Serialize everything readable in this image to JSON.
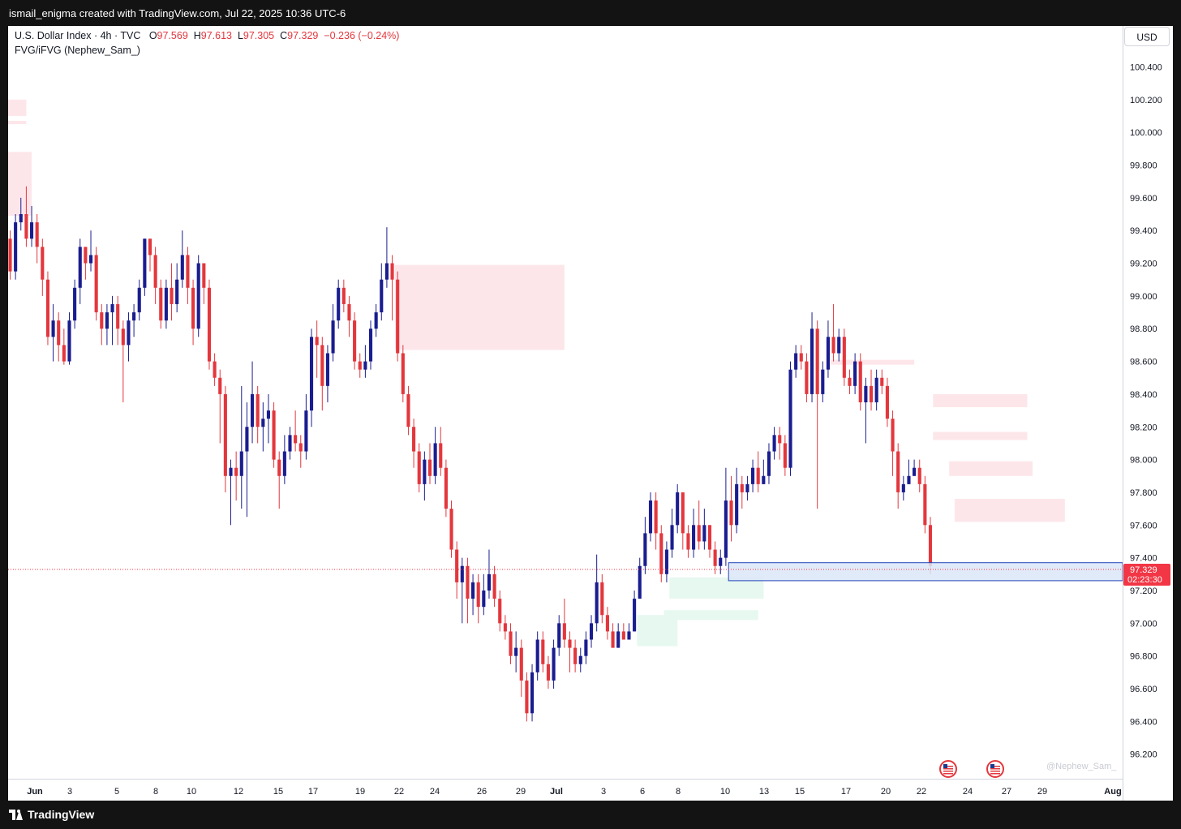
{
  "header": {
    "title": "ismail_enigma created with TradingView.com, Jul 22, 2025 10:36 UTC-6"
  },
  "footer": {
    "brand": "TradingView"
  },
  "legend": {
    "symbol": "U.S. Dollar Index · 4h · TVC",
    "o_label": "O",
    "o": "97.569",
    "h_label": "H",
    "h": "97.613",
    "l_label": "L",
    "l": "97.305",
    "c_label": "C",
    "c": "97.329",
    "change": "−0.236 (−0.24%)",
    "indicator": "FVG/iFVG (Nephew_Sam_)"
  },
  "currency": "USD",
  "watermark": "@Nephew_Sam_",
  "colors": {
    "up": "#1a1d8f",
    "down": "#e3373d",
    "bear_fvg": "#fde6ea",
    "bull_fvg": "#e6f8ef",
    "zone_fill": "#dbe6f8",
    "zone_border": "#2244bb",
    "price_tag": "#f23645"
  },
  "chart_data": {
    "type": "candlestick",
    "timeframe": "4h",
    "ylim": [
      96.05,
      100.65
    ],
    "y_ticks": [
      100.4,
      100.2,
      100.0,
      99.8,
      99.6,
      99.4,
      99.2,
      99.0,
      98.8,
      98.6,
      98.4,
      98.2,
      98.0,
      97.8,
      97.6,
      97.4,
      97.2,
      97.0,
      96.8,
      96.6,
      96.4,
      96.2
    ],
    "x_ticks": [
      "Jun",
      "3",
      "5",
      "8",
      "10",
      "12",
      "15",
      "17",
      "19",
      "22",
      "24",
      "26",
      "29",
      "Jul",
      "3",
      "6",
      "8",
      "10",
      "13",
      "15",
      "17",
      "20",
      "22",
      "24",
      "27",
      "29",
      "Aug"
    ],
    "last_price": "97.329",
    "countdown": "02:23:30",
    "candles": [
      [
        99.35,
        99.15,
        99.4,
        99.1
      ],
      [
        99.15,
        99.45,
        99.5,
        99.1
      ],
      [
        99.45,
        99.5,
        99.6,
        99.4
      ],
      [
        99.5,
        99.35,
        99.67,
        99.3
      ],
      [
        99.35,
        99.45,
        99.55,
        99.3
      ],
      [
        99.45,
        99.3,
        99.5,
        99.2
      ],
      [
        99.3,
        99.1,
        99.35,
        99.0
      ],
      [
        99.1,
        98.75,
        99.15,
        98.7
      ],
      [
        98.75,
        98.85,
        98.95,
        98.6
      ],
      [
        98.85,
        98.7,
        98.9,
        98.6
      ],
      [
        98.7,
        98.6,
        98.8,
        98.58
      ],
      [
        98.6,
        98.85,
        98.9,
        98.58
      ],
      [
        98.85,
        99.05,
        99.1,
        98.8
      ],
      [
        99.05,
        99.3,
        99.35,
        98.95
      ],
      [
        99.3,
        99.2,
        99.3,
        99.1
      ],
      [
        99.2,
        99.25,
        99.4,
        99.15
      ],
      [
        99.25,
        98.9,
        99.3,
        98.85
      ],
      [
        98.9,
        98.8,
        98.95,
        98.7
      ],
      [
        98.8,
        98.9,
        98.95,
        98.7
      ],
      [
        98.9,
        98.95,
        99.0,
        98.7
      ],
      [
        98.95,
        98.8,
        99.0,
        98.7
      ],
      [
        98.8,
        98.7,
        98.85,
        98.35
      ],
      [
        98.7,
        98.85,
        98.9,
        98.6
      ],
      [
        98.85,
        98.9,
        98.95,
        98.75
      ],
      [
        98.9,
        99.05,
        99.1,
        98.85
      ],
      [
        99.05,
        99.35,
        99.35,
        99.0
      ],
      [
        99.35,
        99.25,
        99.35,
        99.15
      ],
      [
        99.25,
        99.05,
        99.3,
        98.95
      ],
      [
        99.05,
        98.85,
        99.1,
        98.8
      ],
      [
        98.85,
        99.05,
        99.1,
        98.8
      ],
      [
        99.05,
        98.95,
        99.2,
        98.85
      ],
      [
        98.95,
        99.1,
        99.2,
        98.9
      ],
      [
        99.1,
        99.25,
        99.4,
        99.05
      ],
      [
        99.25,
        99.05,
        99.3,
        98.95
      ],
      [
        99.05,
        98.8,
        99.1,
        98.7
      ],
      [
        98.8,
        99.2,
        99.25,
        98.75
      ],
      [
        99.2,
        99.05,
        99.2,
        98.95
      ],
      [
        99.05,
        98.6,
        99.1,
        98.55
      ],
      [
        98.6,
        98.5,
        98.65,
        98.45
      ],
      [
        98.5,
        98.4,
        98.55,
        98.1
      ],
      [
        98.4,
        97.9,
        98.45,
        97.8
      ],
      [
        97.9,
        97.95,
        98.0,
        97.6
      ],
      [
        97.95,
        97.9,
        98.05,
        97.75
      ],
      [
        97.9,
        98.05,
        98.45,
        97.7
      ],
      [
        98.05,
        98.2,
        98.35,
        97.65
      ],
      [
        98.2,
        98.4,
        98.6,
        98.1
      ],
      [
        98.4,
        98.2,
        98.45,
        98.1
      ],
      [
        98.2,
        98.25,
        98.35,
        98.05
      ],
      [
        98.25,
        98.3,
        98.4,
        98.1
      ],
      [
        98.3,
        98.0,
        98.35,
        97.95
      ],
      [
        98.0,
        97.9,
        98.05,
        97.7
      ],
      [
        97.9,
        98.05,
        98.15,
        97.85
      ],
      [
        98.05,
        98.15,
        98.2,
        98.0
      ],
      [
        98.15,
        98.1,
        98.3,
        98.05
      ],
      [
        98.1,
        98.05,
        98.15,
        97.95
      ],
      [
        98.05,
        98.3,
        98.4,
        98.0
      ],
      [
        98.3,
        98.75,
        98.8,
        98.2
      ],
      [
        98.75,
        98.7,
        98.85,
        98.5
      ],
      [
        98.7,
        98.45,
        98.75,
        98.3
      ],
      [
        98.45,
        98.65,
        98.7,
        98.35
      ],
      [
        98.65,
        98.85,
        98.95,
        98.6
      ],
      [
        98.85,
        99.05,
        99.1,
        98.8
      ],
      [
        99.05,
        98.95,
        99.1,
        98.9
      ],
      [
        98.95,
        98.85,
        99.0,
        98.75
      ],
      [
        98.85,
        98.6,
        98.9,
        98.55
      ],
      [
        98.6,
        98.55,
        98.65,
        98.5
      ],
      [
        98.55,
        98.6,
        98.7,
        98.5
      ],
      [
        98.6,
        98.8,
        98.85,
        98.55
      ],
      [
        98.8,
        98.9,
        98.95,
        98.75
      ],
      [
        98.9,
        99.1,
        99.2,
        98.85
      ],
      [
        99.1,
        99.2,
        99.42,
        99.05
      ],
      [
        99.2,
        99.1,
        99.25,
        98.85
      ],
      [
        99.1,
        98.65,
        99.15,
        98.6
      ],
      [
        98.65,
        98.4,
        98.7,
        98.35
      ],
      [
        98.4,
        98.2,
        98.45,
        98.15
      ],
      [
        98.2,
        98.05,
        98.25,
        97.95
      ],
      [
        98.05,
        97.85,
        98.1,
        97.8
      ],
      [
        97.85,
        98.0,
        98.05,
        97.75
      ],
      [
        98.0,
        97.9,
        98.1,
        97.85
      ],
      [
        97.9,
        98.1,
        98.2,
        97.85
      ],
      [
        98.1,
        97.95,
        98.2,
        97.9
      ],
      [
        97.95,
        97.7,
        98.0,
        97.65
      ],
      [
        97.7,
        97.45,
        97.75,
        97.4
      ],
      [
        97.45,
        97.25,
        97.5,
        97.15
      ],
      [
        97.25,
        97.35,
        97.4,
        97.0
      ],
      [
        97.35,
        97.15,
        97.4,
        97.0
      ],
      [
        97.15,
        97.25,
        97.3,
        97.05
      ],
      [
        97.25,
        97.1,
        97.3,
        97.0
      ],
      [
        97.1,
        97.2,
        97.3,
        97.05
      ],
      [
        97.2,
        97.3,
        97.45,
        97.15
      ],
      [
        97.3,
        97.15,
        97.35,
        97.1
      ],
      [
        97.15,
        97.0,
        97.2,
        96.95
      ],
      [
        97.0,
        96.95,
        97.05,
        96.9
      ],
      [
        96.95,
        96.8,
        97.0,
        96.75
      ],
      [
        96.8,
        96.85,
        96.95,
        96.7
      ],
      [
        96.85,
        96.65,
        96.9,
        96.55
      ],
      [
        96.65,
        96.45,
        96.7,
        96.4
      ],
      [
        96.45,
        96.7,
        96.75,
        96.4
      ],
      [
        96.7,
        96.9,
        96.95,
        96.65
      ],
      [
        96.9,
        96.75,
        96.95,
        96.7
      ],
      [
        96.75,
        96.65,
        96.8,
        96.6
      ],
      [
        96.65,
        96.85,
        96.9,
        96.6
      ],
      [
        96.85,
        97.0,
        97.05,
        96.8
      ],
      [
        97.0,
        96.9,
        97.15,
        96.85
      ],
      [
        96.9,
        96.85,
        96.95,
        96.7
      ],
      [
        96.85,
        96.75,
        96.9,
        96.7
      ],
      [
        96.75,
        96.8,
        96.85,
        96.7
      ],
      [
        96.8,
        96.9,
        96.95,
        96.75
      ],
      [
        96.9,
        97.0,
        97.05,
        96.85
      ],
      [
        97.0,
        97.25,
        97.42,
        96.95
      ],
      [
        97.25,
        97.05,
        97.3,
        97.0
      ],
      [
        97.05,
        96.95,
        97.1,
        96.9
      ],
      [
        96.95,
        96.85,
        97.0,
        96.85
      ],
      [
        96.85,
        96.95,
        97.0,
        96.85
      ],
      [
        96.95,
        96.9,
        97.0,
        96.9
      ],
      [
        96.9,
        96.95,
        97.0,
        96.9
      ],
      [
        96.95,
        97.15,
        97.2,
        96.95
      ],
      [
        97.15,
        97.35,
        97.4,
        97.15
      ],
      [
        97.35,
        97.55,
        97.65,
        97.3
      ],
      [
        97.55,
        97.75,
        97.8,
        97.5
      ],
      [
        97.75,
        97.55,
        97.8,
        97.45
      ],
      [
        97.55,
        97.3,
        97.6,
        97.25
      ],
      [
        97.3,
        97.45,
        97.5,
        97.25
      ],
      [
        97.45,
        97.6,
        97.7,
        97.4
      ],
      [
        97.6,
        97.8,
        97.85,
        97.55
      ],
      [
        97.8,
        97.55,
        97.8,
        97.45
      ],
      [
        97.55,
        97.45,
        97.6,
        97.4
      ],
      [
        97.45,
        97.6,
        97.7,
        97.4
      ],
      [
        97.6,
        97.5,
        97.75,
        97.45
      ],
      [
        97.5,
        97.6,
        97.7,
        97.45
      ],
      [
        97.6,
        97.45,
        97.6,
        97.4
      ],
      [
        97.45,
        97.35,
        97.5,
        97.3
      ],
      [
        97.35,
        97.4,
        97.45,
        97.3
      ],
      [
        97.4,
        97.75,
        97.95,
        97.35
      ],
      [
        97.75,
        97.6,
        97.9,
        97.5
      ],
      [
        97.6,
        97.85,
        97.95,
        97.55
      ],
      [
        97.85,
        97.8,
        97.9,
        97.7
      ],
      [
        97.8,
        97.85,
        97.9,
        97.75
      ],
      [
        97.85,
        97.95,
        98.0,
        97.8
      ],
      [
        97.95,
        97.85,
        98.05,
        97.8
      ],
      [
        97.85,
        97.9,
        98.0,
        97.85
      ],
      [
        97.9,
        98.05,
        98.1,
        97.85
      ],
      [
        98.05,
        98.15,
        98.2,
        98.0
      ],
      [
        98.15,
        98.1,
        98.2,
        98.0
      ],
      [
        98.1,
        97.95,
        98.15,
        97.9
      ],
      [
        97.95,
        98.55,
        98.6,
        97.9
      ],
      [
        98.55,
        98.65,
        98.7,
        98.5
      ],
      [
        98.65,
        98.6,
        98.7,
        98.55
      ],
      [
        98.6,
        98.4,
        98.65,
        98.35
      ],
      [
        98.4,
        98.8,
        98.9,
        98.35
      ],
      [
        98.8,
        98.4,
        98.85,
        97.7
      ],
      [
        98.4,
        98.55,
        98.6,
        98.35
      ],
      [
        98.55,
        98.75,
        98.85,
        98.5
      ],
      [
        98.75,
        98.65,
        98.95,
        98.6
      ],
      [
        98.65,
        98.75,
        98.8,
        98.6
      ],
      [
        98.75,
        98.5,
        98.8,
        98.45
      ],
      [
        98.5,
        98.45,
        98.55,
        98.4
      ],
      [
        98.45,
        98.6,
        98.65,
        98.4
      ],
      [
        98.6,
        98.35,
        98.65,
        98.3
      ],
      [
        98.35,
        98.45,
        98.5,
        98.1
      ],
      [
        98.45,
        98.35,
        98.55,
        98.3
      ],
      [
        98.35,
        98.5,
        98.55,
        98.3
      ],
      [
        98.5,
        98.45,
        98.55,
        98.4
      ],
      [
        98.45,
        98.25,
        98.5,
        98.2
      ],
      [
        98.25,
        98.05,
        98.3,
        97.9
      ],
      [
        98.05,
        97.8,
        98.1,
        97.7
      ],
      [
        97.8,
        97.85,
        97.9,
        97.75
      ],
      [
        97.85,
        97.9,
        98.0,
        97.85
      ],
      [
        97.9,
        97.95,
        98.0,
        97.9
      ],
      [
        97.95,
        97.85,
        98.0,
        97.8
      ],
      [
        97.85,
        97.6,
        97.9,
        97.55
      ],
      [
        97.6,
        97.35,
        97.65,
        97.3
      ]
    ],
    "fvg_zones": [
      {
        "kind": "bearish",
        "start": 0,
        "end": 3,
        "top": 100.2,
        "bottom": 100.1
      },
      {
        "kind": "bearish",
        "start": 0,
        "end": 3,
        "top": 100.07,
        "bottom": 100.05
      },
      {
        "kind": "bearish",
        "start": 0,
        "end": 4,
        "top": 99.88,
        "bottom": 99.49
      },
      {
        "kind": "bearish",
        "start": 72,
        "end": 103,
        "top": 99.19,
        "bottom": 98.67
      },
      {
        "kind": "bearish",
        "start": 153,
        "end": 168,
        "top": 98.61,
        "bottom": 98.58
      },
      {
        "kind": "bearish",
        "start": 172,
        "end": 189,
        "top": 98.4,
        "bottom": 98.32
      },
      {
        "kind": "bearish",
        "start": 172,
        "end": 189,
        "top": 98.17,
        "bottom": 98.12
      },
      {
        "kind": "bearish",
        "start": 175,
        "end": 190,
        "top": 97.99,
        "bottom": 97.9
      },
      {
        "kind": "bearish",
        "start": 176,
        "end": 196,
        "top": 97.76,
        "bottom": 97.62
      },
      {
        "kind": "bullish",
        "start": 123,
        "end": 140,
        "top": 97.28,
        "bottom": 97.15
      },
      {
        "kind": "bullish",
        "start": 122,
        "end": 139,
        "top": 97.08,
        "bottom": 97.02
      },
      {
        "kind": "bullish",
        "start": 117,
        "end": 124,
        "top": 97.05,
        "bottom": 96.86
      }
    ],
    "highlight_zone": {
      "start": 134,
      "top": 97.37,
      "bottom": 97.26
    }
  }
}
